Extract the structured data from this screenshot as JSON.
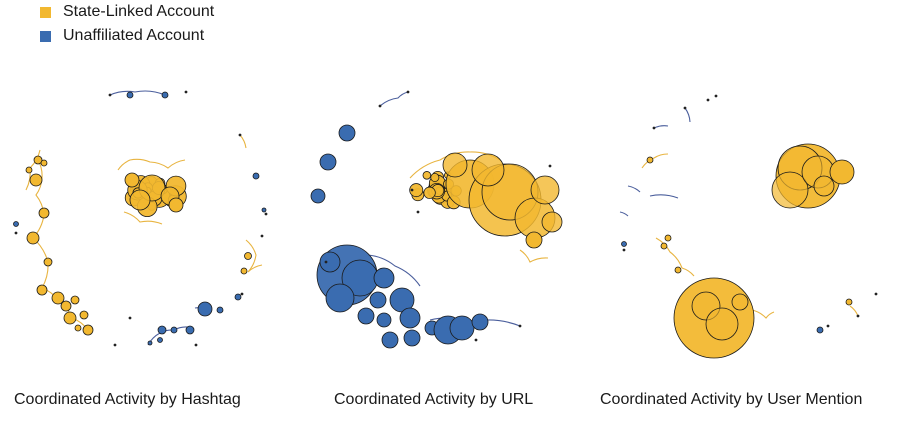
{
  "legend": {
    "state_label": "State-Linked Account",
    "unaffiliated_label": "Unaffiliated Account"
  },
  "colors": {
    "state": "#F2B830",
    "unaffiliated": "#3A6CB0",
    "node_outline": "#1a1a1a",
    "edge_state": "#E8B440",
    "edge_unaffiliated": "#4A5E9C"
  },
  "panels": [
    {
      "caption": "Coordinated Activity by Hashtag"
    },
    {
      "caption": "Coordinated Activity by URL"
    },
    {
      "caption": "Coordinated Activity by User Mention"
    }
  ]
}
